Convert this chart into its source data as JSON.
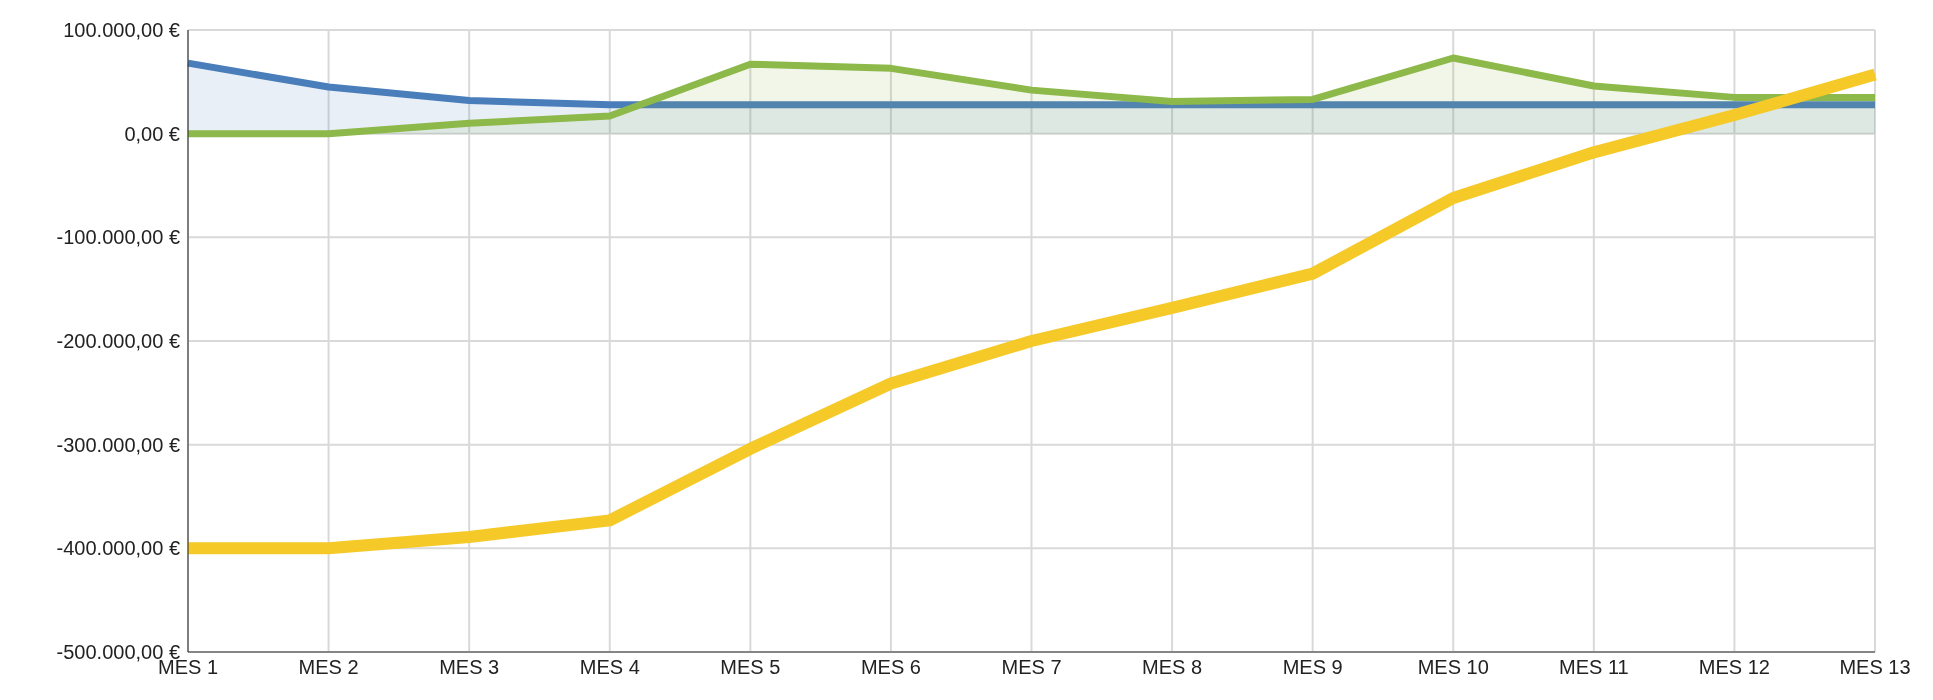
{
  "chart_data": {
    "type": "line",
    "categories": [
      "MES 1",
      "MES 2",
      "MES 3",
      "MES 4",
      "MES 5",
      "MES 6",
      "MES 7",
      "MES 8",
      "MES 9",
      "MES 10",
      "MES 11",
      "MES 12",
      "MES 13"
    ],
    "series": [
      {
        "type": "area",
        "color": "#4a7ebb",
        "values": [
          68000,
          45000,
          32000,
          28000,
          28000,
          28000,
          28000,
          28000,
          28000,
          28000,
          28000,
          28000,
          28000
        ]
      },
      {
        "type": "area",
        "color": "#8db84a",
        "values": [
          0,
          0,
          10000,
          17000,
          67000,
          63000,
          42000,
          31000,
          33000,
          73000,
          46000,
          35000,
          35000
        ]
      },
      {
        "color": "#f5c928",
        "values": [
          -400000,
          -400000,
          -389000,
          -373000,
          -304000,
          -241000,
          -200000,
          -168000,
          -135000,
          -62000,
          -18000,
          18000,
          57000
        ]
      }
    ],
    "ylim": [
      -500000,
      100000
    ],
    "yticks": [
      {
        "value": -500000,
        "label": "-500.000,00 €"
      },
      {
        "value": -400000,
        "label": "-400.000,00 €"
      },
      {
        "value": -300000,
        "label": "-300.000,00 €"
      },
      {
        "value": -200000,
        "label": "-200.000,00 €"
      },
      {
        "value": -100000,
        "label": "-100.000,00 €"
      },
      {
        "value": 0,
        "label": "0,00 €"
      },
      {
        "value": 100000,
        "label": "100.000,00 €"
      }
    ],
    "grid": true,
    "legend": false
  }
}
